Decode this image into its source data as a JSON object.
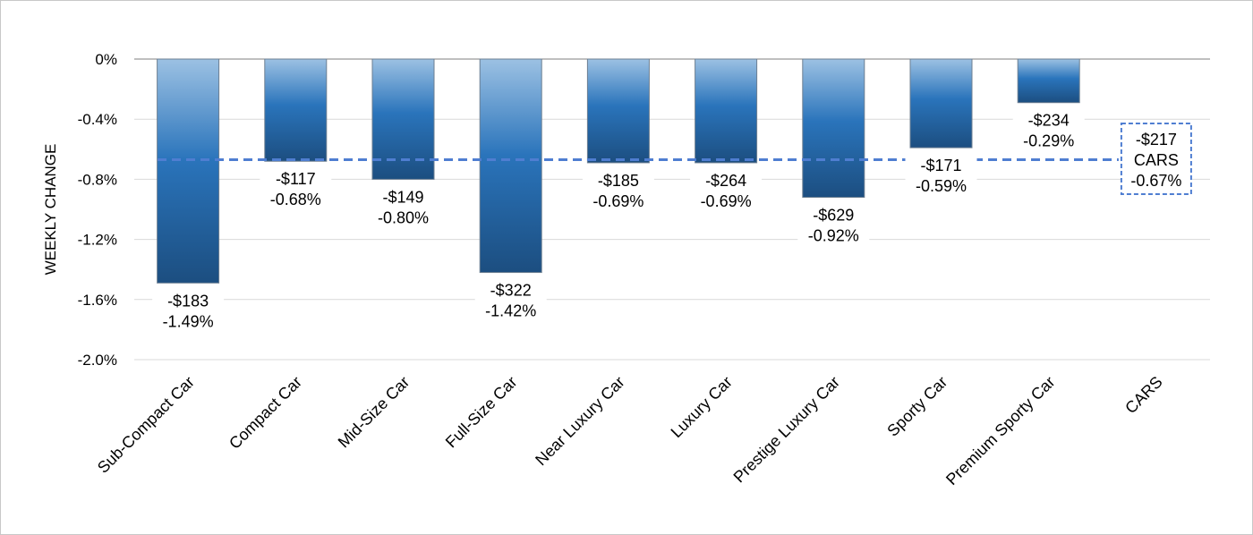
{
  "chart_data": {
    "type": "bar",
    "ylabel": "WEEKLY CHANGE",
    "xlabel": "",
    "ylim": [
      -2.0,
      0
    ],
    "yticks": [
      0,
      -0.4,
      -0.8,
      -1.2,
      -1.6,
      -2.0
    ],
    "ytick_labels": [
      "0%",
      "-0.4%",
      "-0.8%",
      "-1.2%",
      "-1.6%",
      "-2.0%"
    ],
    "grid": true,
    "categories": [
      "Sub-Compact Car",
      "Compact Car",
      "Mid-Size Car",
      "Full-Size Car",
      "Near Luxury Car",
      "Luxury Car",
      "Prestige Luxury Car",
      "Sporty Car",
      "Premium Sporty Car",
      "CARS"
    ],
    "values": [
      -1.49,
      -0.68,
      -0.8,
      -1.42,
      -0.69,
      -0.69,
      -0.92,
      -0.59,
      -0.29,
      null
    ],
    "dollar_labels": [
      "-$183",
      "-$117",
      "-$149",
      "-$322",
      "-$185",
      "-$264",
      "-$629",
      "-$171",
      "-$234",
      "-$217"
    ],
    "percent_labels": [
      "-1.49%",
      "-0.68%",
      "-0.80%",
      "-1.42%",
      "-0.69%",
      "-0.69%",
      "-0.92%",
      "-0.59%",
      "-0.29%",
      "-0.67%"
    ],
    "reference_line": {
      "value": -0.67,
      "label_lines": [
        "-$217",
        "CARS",
        "-0.67%"
      ]
    },
    "colors": {
      "bar_top": "#9cc1e3",
      "bar_mid": "#2a74bb",
      "bar_bottom": "#1c4e80",
      "reference_line": "#4f7ed1",
      "grid": "#d9d9d9",
      "axis": "#7f7f7f"
    }
  }
}
